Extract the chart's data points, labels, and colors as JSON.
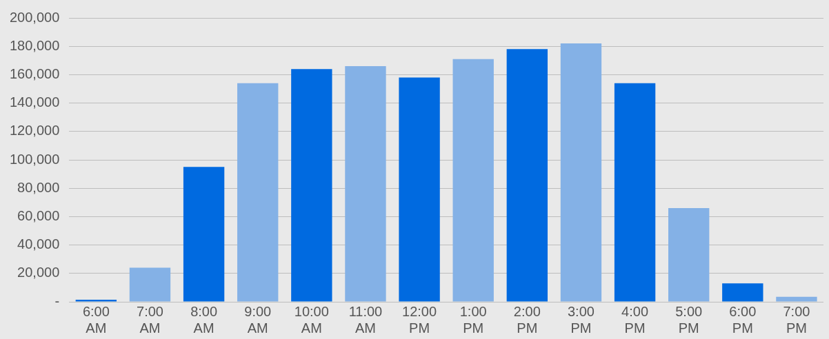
{
  "chart_data": {
    "type": "bar",
    "categories": [
      "6:00 AM",
      "7:00 AM",
      "8:00 AM",
      "9:00 AM",
      "10:00 AM",
      "11:00 AM",
      "12:00 PM",
      "1:00 PM",
      "2:00 PM",
      "3:00 PM",
      "4:00 PM",
      "5:00 PM",
      "6:00 PM",
      "7:00 PM"
    ],
    "values": [
      1500,
      24000,
      95000,
      154000,
      164000,
      166000,
      158000,
      171000,
      178000,
      182000,
      154000,
      66000,
      13000,
      3500
    ],
    "colors": [
      "#006ae0",
      "#84b1e6",
      "#006ae0",
      "#84b1e6",
      "#006ae0",
      "#84b1e6",
      "#006ae0",
      "#84b1e6",
      "#006ae0",
      "#84b1e6",
      "#006ae0",
      "#84b1e6",
      "#006ae0",
      "#84b1e6"
    ],
    "ylim": [
      0,
      200000
    ],
    "yticks": [
      {
        "value": 0,
        "label": "-"
      },
      {
        "value": 20000,
        "label": "20,000"
      },
      {
        "value": 40000,
        "label": "40,000"
      },
      {
        "value": 60000,
        "label": "60,000"
      },
      {
        "value": 80000,
        "label": "80,000"
      },
      {
        "value": 100000,
        "label": "100,000"
      },
      {
        "value": 120000,
        "label": "120,000"
      },
      {
        "value": 140000,
        "label": "140,000"
      },
      {
        "value": 160000,
        "label": "160,000"
      },
      {
        "value": 180000,
        "label": "180,000"
      },
      {
        "value": 200000,
        "label": "200,000"
      }
    ],
    "grid": "y",
    "legend": false
  }
}
